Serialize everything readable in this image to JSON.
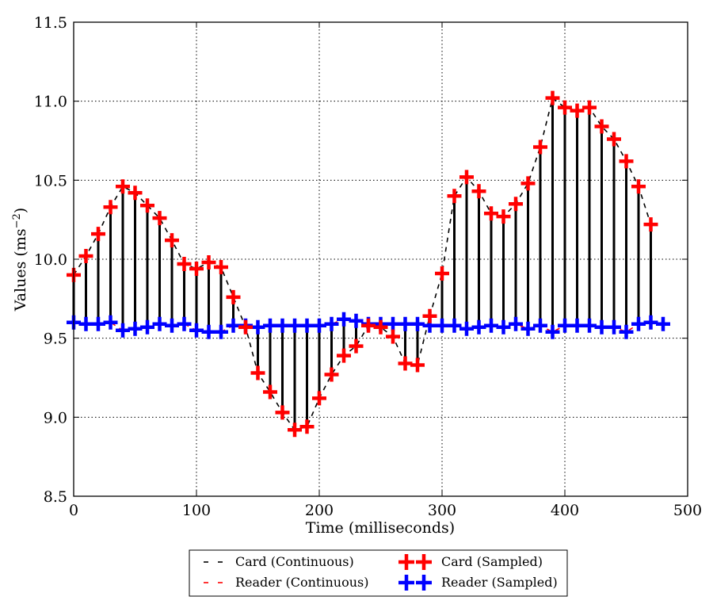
{
  "chart_data": {
    "type": "line",
    "title": "",
    "xlabel": "Time (milliseconds)",
    "ylabel": "Values (ms",
    "ylabel_sup": "−2",
    "ylabel_end": ")",
    "xlim": [
      0,
      500
    ],
    "ylim": [
      8.5,
      11.5
    ],
    "xticks": [
      0,
      100,
      200,
      300,
      400,
      500
    ],
    "yticks": [
      8.5,
      9.0,
      9.5,
      10.0,
      10.5,
      11.0,
      11.5
    ],
    "xtick_labels": [
      "0",
      "100",
      "200",
      "300",
      "400",
      "500"
    ],
    "ytick_labels": [
      "8.5",
      "9.0",
      "9.5",
      "10.0",
      "10.5",
      "11.0",
      "11.5"
    ],
    "grid": true,
    "legend_position": "below",
    "colors": {
      "card": "#000000",
      "reader": "#ff0000",
      "card_sampled": "#ff0000",
      "reader_sampled": "#0000ff",
      "stem": "#000000",
      "grid": "#000000"
    },
    "series": [
      {
        "name": "Card (Continuous)",
        "style": "dashed",
        "x": [
          0,
          10,
          20,
          30,
          40,
          50,
          60,
          70,
          80,
          90,
          100,
          110,
          120,
          130,
          140,
          150,
          160,
          170,
          180,
          190,
          200,
          210,
          220,
          230,
          240,
          250,
          260,
          270,
          280,
          290,
          300,
          310,
          320,
          330,
          340,
          350,
          360,
          370,
          380,
          390,
          400,
          410,
          420,
          430,
          440,
          450,
          460,
          470
        ],
        "y": [
          9.9,
          10.02,
          10.16,
          10.33,
          10.46,
          10.42,
          10.34,
          10.26,
          10.12,
          9.97,
          9.94,
          9.98,
          9.95,
          9.76,
          9.57,
          9.28,
          9.16,
          9.03,
          8.92,
          8.94,
          9.12,
          9.27,
          9.39,
          9.45,
          9.58,
          9.57,
          9.51,
          9.34,
          9.33,
          9.64,
          9.91,
          10.4,
          10.52,
          10.43,
          10.29,
          10.27,
          10.35,
          10.48,
          10.71,
          11.02,
          10.96,
          10.94,
          10.96,
          10.84,
          10.76,
          10.62,
          10.46,
          10.22
        ]
      },
      {
        "name": "Reader (Continuous)",
        "style": "dashed",
        "x": [
          0,
          10,
          20,
          30,
          40,
          50,
          60,
          70,
          80,
          90,
          100,
          110,
          120,
          130,
          140,
          150,
          160,
          170,
          180,
          190,
          200,
          210,
          220,
          230,
          240,
          250,
          260,
          270,
          280,
          290,
          300,
          310,
          320,
          330,
          340,
          350,
          360,
          370,
          380,
          390,
          400,
          410,
          420,
          430,
          440,
          450,
          460,
          470,
          480
        ],
        "y": [
          9.6,
          9.59,
          9.59,
          9.6,
          9.55,
          9.56,
          9.57,
          9.59,
          9.58,
          9.59,
          9.55,
          9.54,
          9.54,
          9.58,
          9.58,
          9.57,
          9.58,
          9.58,
          9.58,
          9.58,
          9.58,
          9.59,
          9.62,
          9.61,
          9.59,
          9.59,
          9.59,
          9.59,
          9.59,
          9.58,
          9.58,
          9.58,
          9.56,
          9.57,
          9.58,
          9.57,
          9.59,
          9.56,
          9.58,
          9.54,
          9.58,
          9.58,
          9.58,
          9.57,
          9.57,
          9.54,
          9.59,
          9.6,
          9.59
        ]
      },
      {
        "name": "Card (Sampled)",
        "marker": "plus",
        "x": [
          0,
          10,
          20,
          30,
          40,
          50,
          60,
          70,
          80,
          90,
          100,
          110,
          120,
          130,
          140,
          150,
          160,
          170,
          180,
          190,
          200,
          210,
          220,
          230,
          240,
          250,
          260,
          270,
          280,
          290,
          300,
          310,
          320,
          330,
          340,
          350,
          360,
          370,
          380,
          390,
          400,
          410,
          420,
          430,
          440,
          450,
          460,
          470
        ],
        "y": [
          9.9,
          10.02,
          10.16,
          10.33,
          10.46,
          10.42,
          10.34,
          10.26,
          10.12,
          9.97,
          9.94,
          9.98,
          9.95,
          9.76,
          9.57,
          9.28,
          9.16,
          9.03,
          8.92,
          8.94,
          9.12,
          9.27,
          9.39,
          9.45,
          9.58,
          9.57,
          9.51,
          9.34,
          9.33,
          9.64,
          9.91,
          10.4,
          10.52,
          10.43,
          10.29,
          10.27,
          10.35,
          10.48,
          10.71,
          11.02,
          10.96,
          10.94,
          10.96,
          10.84,
          10.76,
          10.62,
          10.46,
          10.22
        ]
      },
      {
        "name": "Reader (Sampled)",
        "marker": "plus",
        "x": [
          0,
          10,
          20,
          30,
          40,
          50,
          60,
          70,
          80,
          90,
          100,
          110,
          120,
          130,
          140,
          150,
          160,
          170,
          180,
          190,
          200,
          210,
          220,
          230,
          240,
          250,
          260,
          270,
          280,
          290,
          300,
          310,
          320,
          330,
          340,
          350,
          360,
          370,
          380,
          390,
          400,
          410,
          420,
          430,
          440,
          450,
          460,
          470,
          480
        ],
        "y": [
          9.6,
          9.59,
          9.59,
          9.6,
          9.55,
          9.56,
          9.57,
          9.59,
          9.58,
          9.59,
          9.55,
          9.54,
          9.54,
          9.58,
          9.58,
          9.57,
          9.58,
          9.58,
          9.58,
          9.58,
          9.58,
          9.59,
          9.62,
          9.61,
          9.59,
          9.59,
          9.59,
          9.59,
          9.59,
          9.58,
          9.58,
          9.58,
          9.56,
          9.57,
          9.58,
          9.57,
          9.59,
          9.56,
          9.58,
          9.54,
          9.58,
          9.58,
          9.58,
          9.57,
          9.57,
          9.54,
          9.59,
          9.6,
          9.59
        ]
      }
    ],
    "legend": [
      {
        "label": "Card (Continuous)",
        "kind": "dash",
        "color": "#000000"
      },
      {
        "label": "Reader (Continuous)",
        "kind": "dash",
        "color": "#ff0000"
      },
      {
        "label": "Card (Sampled)",
        "kind": "plus",
        "color": "#ff0000"
      },
      {
        "label": "Reader (Sampled)",
        "kind": "plus",
        "color": "#0000ff"
      }
    ]
  }
}
